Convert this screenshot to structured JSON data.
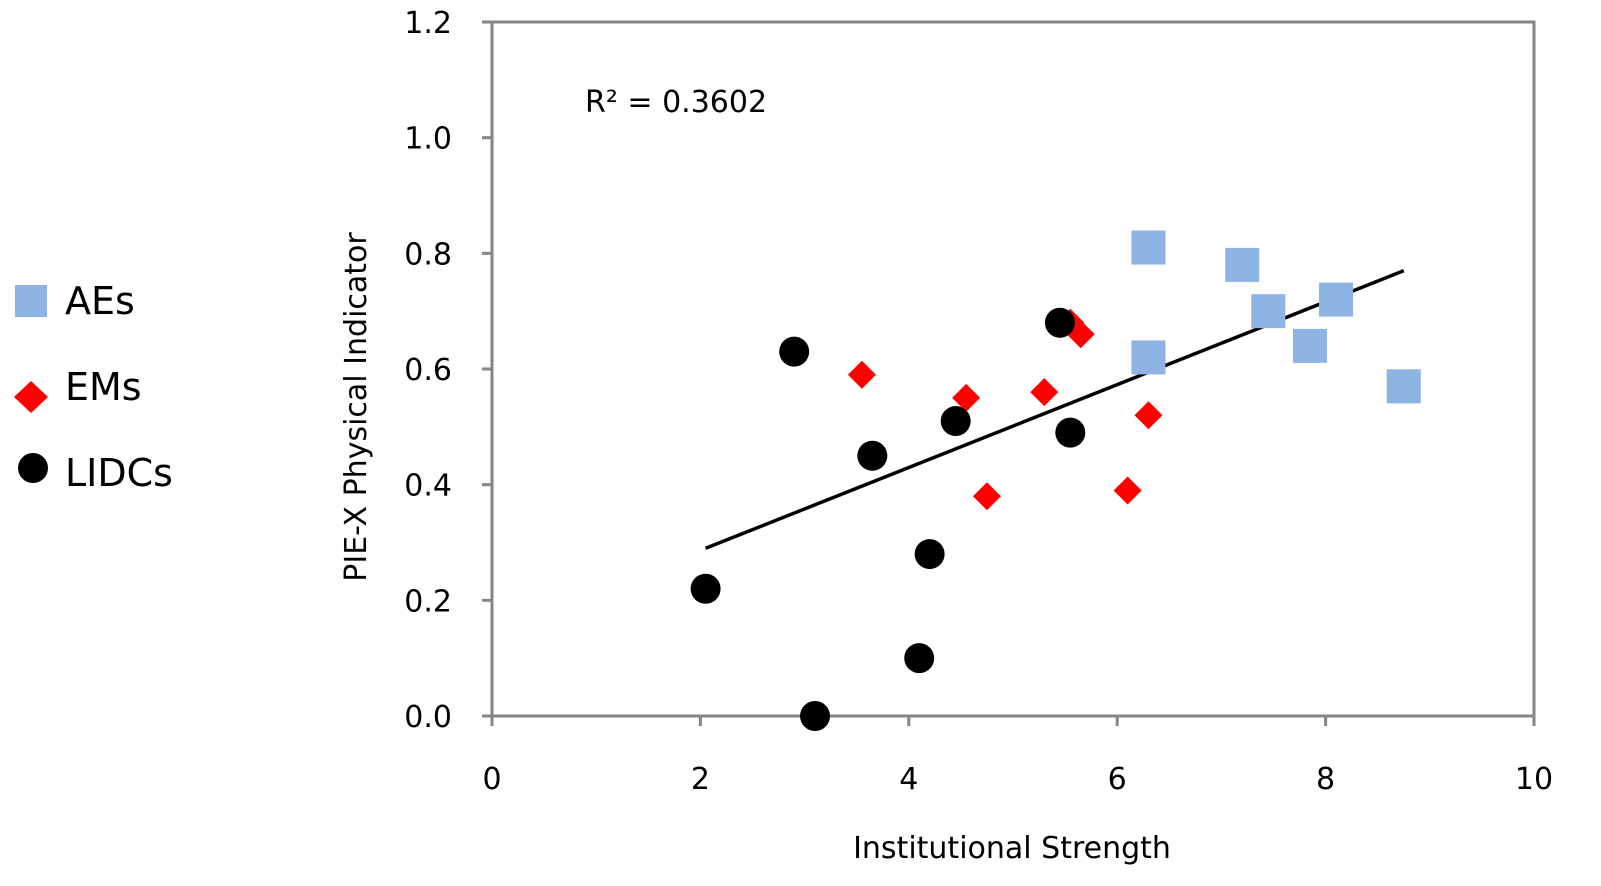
{
  "chart_data": {
    "type": "scatter",
    "title": "",
    "xlabel": "Institutional Strength",
    "ylabel": "PIE-X Physical Indicator",
    "xlim": [
      0,
      10
    ],
    "ylim": [
      0,
      1.2
    ],
    "x_ticks": [
      "0",
      "2",
      "4",
      "6",
      "8",
      "10"
    ],
    "y_ticks": [
      "0.0",
      "0.2",
      "0.4",
      "0.6",
      "0.8",
      "1.0",
      "1.2"
    ],
    "grid": false,
    "legend_position": "left",
    "annotation": "R² = 0.3602",
    "trendline": {
      "x": [
        2.05,
        8.75
      ],
      "y": [
        0.29,
        0.77
      ]
    },
    "series": [
      {
        "name": "AEs",
        "marker": "square",
        "color": "#8eb4e3",
        "points": [
          {
            "x": 6.3,
            "y": 0.81
          },
          {
            "x": 7.2,
            "y": 0.78
          },
          {
            "x": 7.45,
            "y": 0.7
          },
          {
            "x": 8.1,
            "y": 0.72
          },
          {
            "x": 6.3,
            "y": 0.62
          },
          {
            "x": 7.85,
            "y": 0.64
          },
          {
            "x": 8.75,
            "y": 0.57
          }
        ]
      },
      {
        "name": "EMs",
        "marker": "diamond",
        "color": "#ff0000",
        "points": [
          {
            "x": 3.55,
            "y": 0.59
          },
          {
            "x": 4.55,
            "y": 0.55
          },
          {
            "x": 4.75,
            "y": 0.38
          },
          {
            "x": 5.3,
            "y": 0.56
          },
          {
            "x": 5.55,
            "y": 0.68
          },
          {
            "x": 5.65,
            "y": 0.66
          },
          {
            "x": 6.1,
            "y": 0.39
          },
          {
            "x": 6.3,
            "y": 0.52
          }
        ]
      },
      {
        "name": "LIDCs",
        "marker": "circle",
        "color": "#000000",
        "points": [
          {
            "x": 2.05,
            "y": 0.22
          },
          {
            "x": 2.9,
            "y": 0.63
          },
          {
            "x": 3.1,
            "y": 0.0
          },
          {
            "x": 3.65,
            "y": 0.45
          },
          {
            "x": 4.1,
            "y": 0.1
          },
          {
            "x": 4.2,
            "y": 0.28
          },
          {
            "x": 4.45,
            "y": 0.51
          },
          {
            "x": 5.45,
            "y": 0.68
          },
          {
            "x": 5.55,
            "y": 0.49
          }
        ]
      }
    ]
  }
}
